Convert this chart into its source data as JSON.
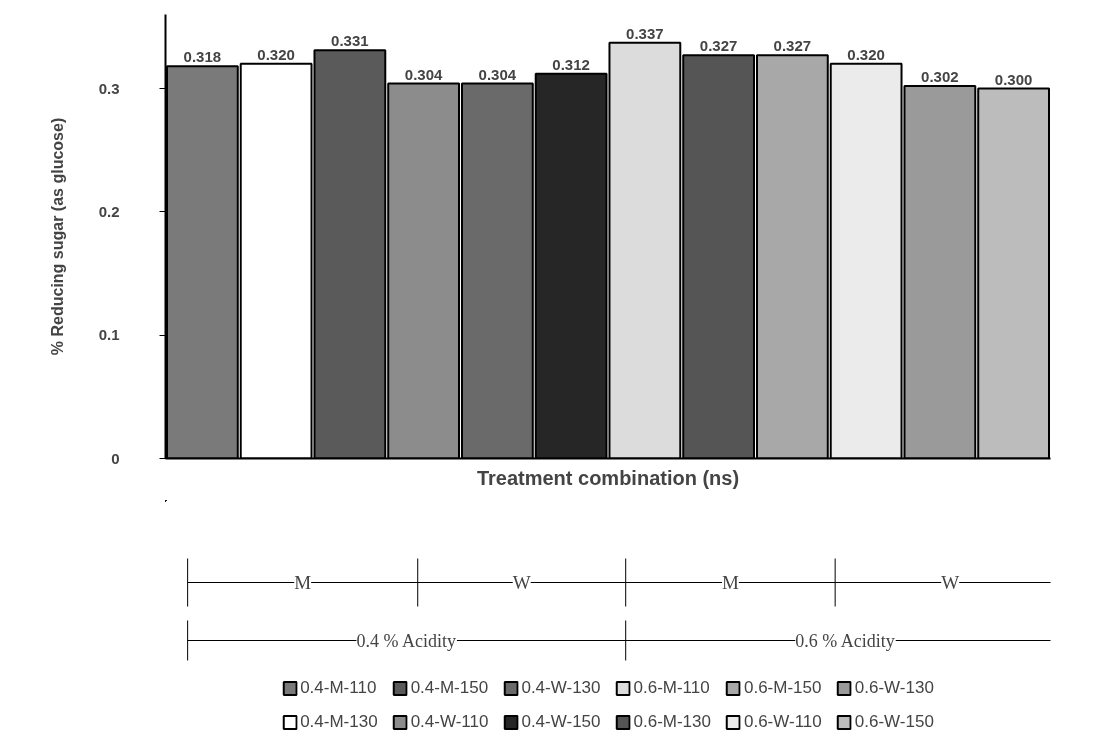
{
  "chart_data": {
    "type": "bar",
    "ylabel": "% Reducing sugar (as glucose)",
    "xlabel": "Treatment combination (ns)",
    "categories": [
      null,
      null,
      null,
      null,
      null,
      null,
      null,
      null,
      null,
      null,
      null,
      null
    ],
    "ylim": [
      0,
      0.36
    ],
    "yticks": [
      0,
      0.1,
      0.2,
      0.3
    ],
    "grid": false,
    "legend": "bottom",
    "tick_labels": "y",
    "annotations": [
      "M",
      "W",
      "M",
      "W",
      "0.4 % Acidity",
      "0.6 % Acidity"
    ],
    "series": [
      {
        "name": "0.4-M-110",
        "color": "#7a7a7a",
        "values": [
          0.318,
          null,
          null,
          null,
          null,
          null,
          null,
          null,
          null,
          null,
          null,
          null
        ],
        "value_labels": [
          "0.318",
          null,
          null,
          null,
          null,
          null,
          null,
          null,
          null,
          null,
          null,
          null
        ]
      },
      {
        "name": "0.4-M-130",
        "color": "#ffffff",
        "values": [
          null,
          0.32,
          null,
          null,
          null,
          null,
          null,
          null,
          null,
          null,
          null,
          null
        ],
        "value_labels": [
          null,
          "0.320",
          null,
          null,
          null,
          null,
          null,
          null,
          null,
          null,
          null,
          null
        ]
      },
      {
        "name": "0.4-M-150",
        "color": "#5a5a5a",
        "values": [
          null,
          null,
          0.331,
          null,
          null,
          null,
          null,
          null,
          null,
          null,
          null,
          null
        ],
        "value_labels": [
          null,
          null,
          "0.331",
          null,
          null,
          null,
          null,
          null,
          null,
          null,
          null,
          null
        ]
      },
      {
        "name": "0.4-W-110",
        "color": "#8c8c8c",
        "values": [
          null,
          null,
          null,
          0.304,
          null,
          null,
          null,
          null,
          null,
          null,
          null,
          null
        ],
        "value_labels": [
          null,
          null,
          null,
          "0.304",
          null,
          null,
          null,
          null,
          null,
          null,
          null,
          null
        ]
      },
      {
        "name": "0.4-W-130",
        "color": "#6a6a6a",
        "values": [
          null,
          null,
          null,
          null,
          0.304,
          null,
          null,
          null,
          null,
          null,
          null,
          null
        ],
        "value_labels": [
          null,
          null,
          null,
          null,
          "0.304",
          null,
          null,
          null,
          null,
          null,
          null,
          null
        ]
      },
      {
        "name": "0.4-W-150",
        "color": "#262626",
        "values": [
          null,
          null,
          null,
          null,
          null,
          0.312,
          null,
          null,
          null,
          null,
          null,
          null
        ],
        "value_labels": [
          null,
          null,
          null,
          null,
          null,
          "0.312",
          null,
          null,
          null,
          null,
          null,
          null
        ]
      },
      {
        "name": "0.6-M-110",
        "color": "#dcdcdc",
        "values": [
          null,
          null,
          null,
          null,
          null,
          null,
          0.337,
          null,
          null,
          null,
          null,
          null
        ],
        "value_labels": [
          null,
          null,
          null,
          null,
          null,
          null,
          "0.337",
          null,
          null,
          null,
          null,
          null
        ]
      },
      {
        "name": "0.6-M-130",
        "color": "#555555",
        "values": [
          null,
          null,
          null,
          null,
          null,
          null,
          null,
          0.327,
          null,
          null,
          null,
          null
        ],
        "value_labels": [
          null,
          null,
          null,
          null,
          null,
          null,
          null,
          "0.327",
          null,
          null,
          null,
          null
        ]
      },
      {
        "name": "0.6-M-150",
        "color": "#a8a8a8",
        "values": [
          null,
          null,
          null,
          null,
          null,
          null,
          null,
          null,
          0.327,
          null,
          null,
          null
        ],
        "value_labels": [
          null,
          null,
          null,
          null,
          null,
          null,
          null,
          null,
          "0.327",
          null,
          null,
          null
        ]
      },
      {
        "name": "0.6-W-110",
        "color": "#ebebeb",
        "values": [
          null,
          null,
          null,
          null,
          null,
          null,
          null,
          null,
          null,
          0.32,
          null,
          null
        ],
        "value_labels": [
          null,
          null,
          null,
          null,
          null,
          null,
          null,
          null,
          null,
          "0.320",
          null,
          null
        ]
      },
      {
        "name": "0.6-W-130",
        "color": "#9a9a9a",
        "values": [
          null,
          null,
          null,
          null,
          null,
          null,
          null,
          null,
          null,
          null,
          0.302,
          null
        ],
        "value_labels": [
          null,
          null,
          null,
          null,
          null,
          null,
          null,
          null,
          null,
          null,
          "0.302",
          null
        ]
      },
      {
        "name": "0.6-W-150",
        "color": "#bcbcbc",
        "values": [
          null,
          null,
          null,
          null,
          null,
          null,
          null,
          null,
          null,
          null,
          null,
          0.3
        ],
        "value_labels": [
          null,
          null,
          null,
          null,
          null,
          null,
          null,
          null,
          null,
          null,
          null,
          "0.300"
        ]
      }
    ]
  }
}
